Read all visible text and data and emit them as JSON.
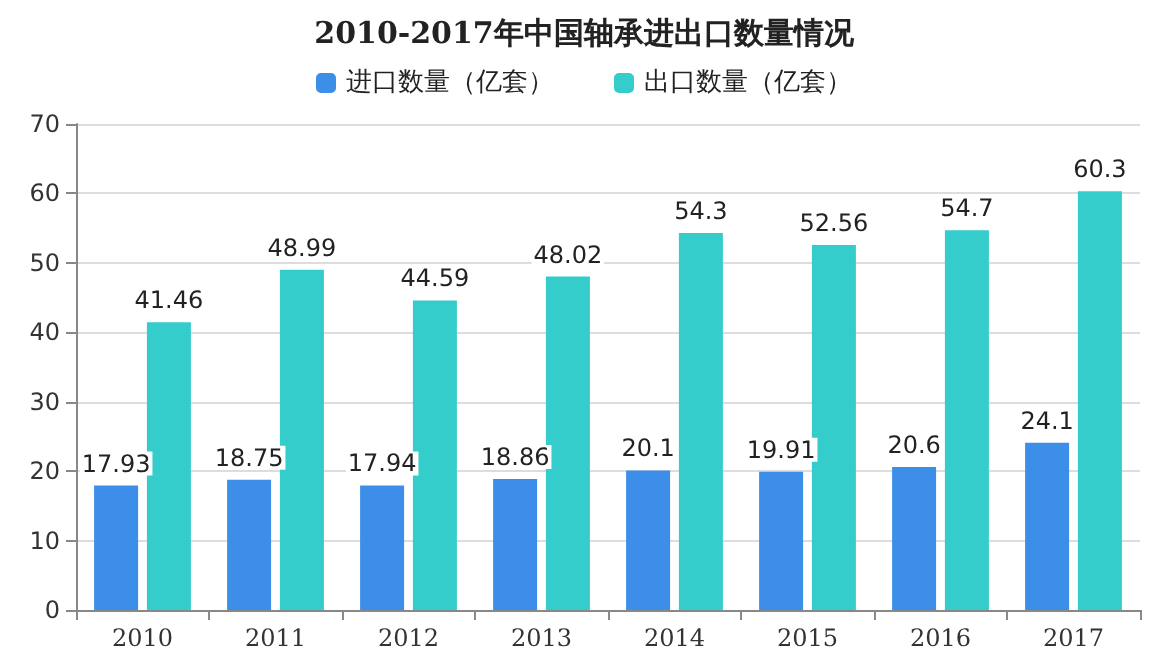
{
  "chart_data": {
    "type": "bar",
    "title": "2010-2017年中国轴承进出口数量情况",
    "categories": [
      "2010",
      "2011",
      "2012",
      "2013",
      "2014",
      "2015",
      "2016",
      "2017"
    ],
    "series": [
      {
        "name": "进口数量（亿套）",
        "color": "#3d8ee8",
        "values": [
          17.93,
          18.75,
          17.94,
          18.86,
          20.1,
          19.91,
          20.6,
          24.1
        ]
      },
      {
        "name": "出口数量（亿套）",
        "color": "#35cccc",
        "values": [
          41.46,
          48.99,
          44.59,
          48.02,
          54.3,
          52.56,
          54.7,
          60.3
        ]
      }
    ],
    "ylim": [
      0,
      70
    ],
    "yticks": [
      0,
      10,
      20,
      30,
      40,
      50,
      60,
      70
    ],
    "grid": "y",
    "legend": "top",
    "data_labels": true
  }
}
